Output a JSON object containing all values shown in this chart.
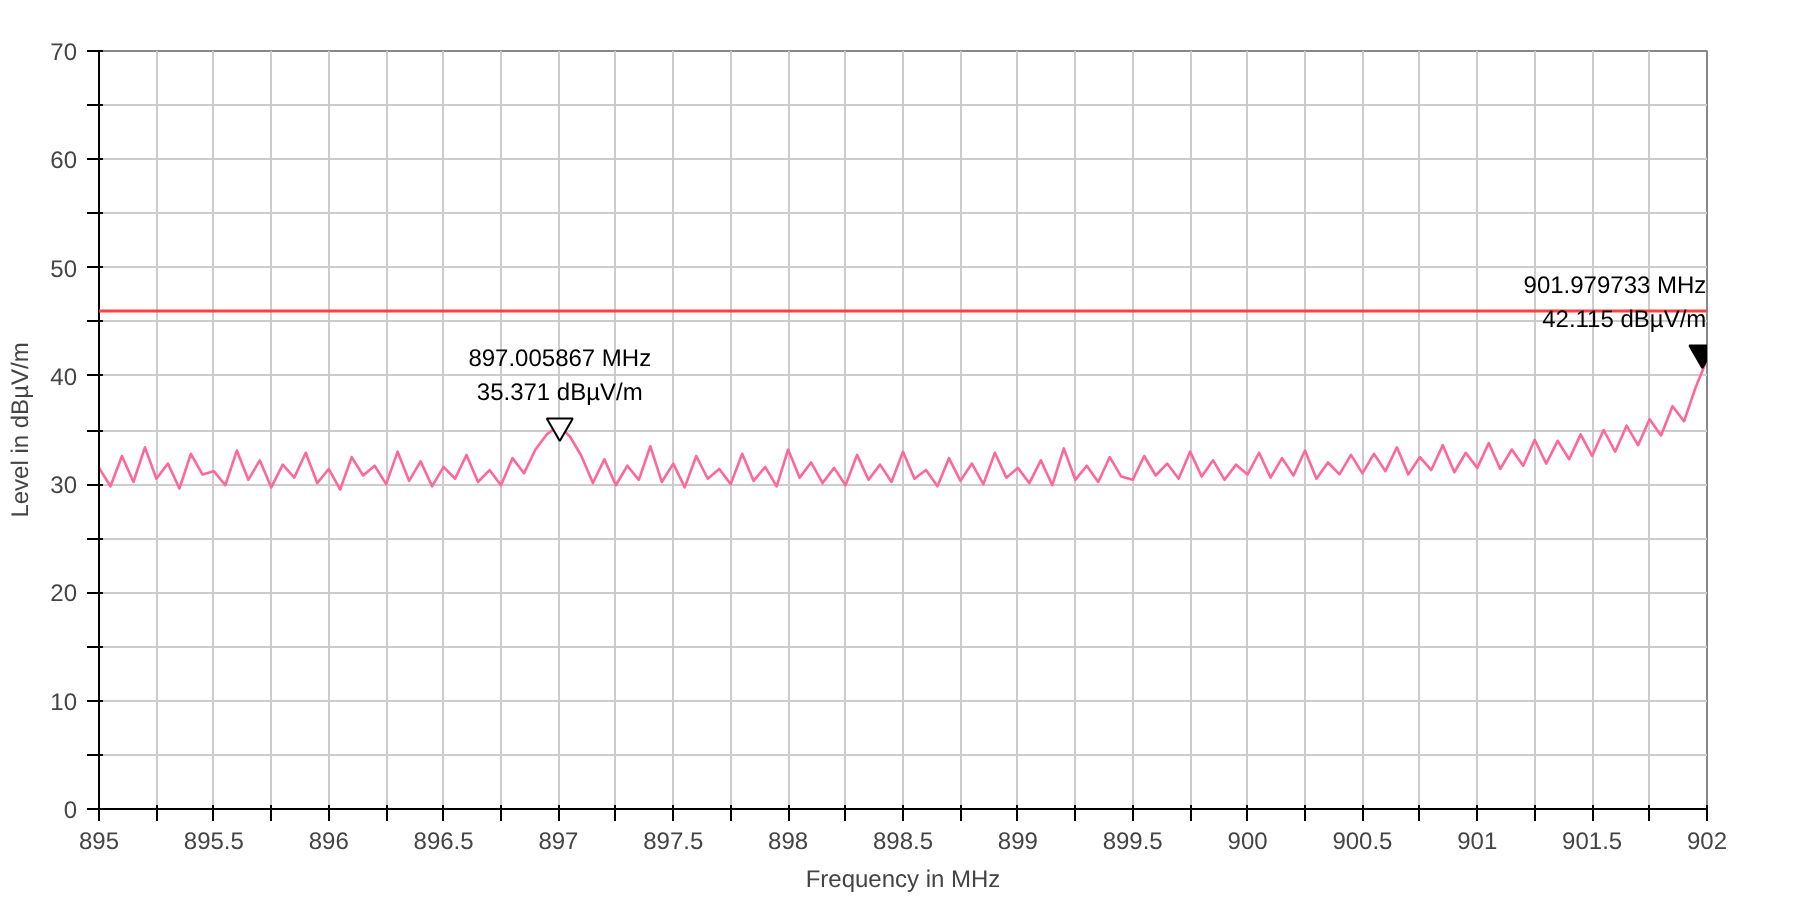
{
  "chart_data": {
    "type": "line",
    "xlabel": "Frequency in MHz",
    "ylabel": "Level in dBµV/m",
    "x": [
      895.0,
      895.05,
      895.1,
      895.15,
      895.2,
      895.25,
      895.3,
      895.35,
      895.4,
      895.45,
      895.5,
      895.55,
      895.6,
      895.65,
      895.7,
      895.75,
      895.8,
      895.85,
      895.9,
      895.95,
      896.0,
      896.05,
      896.1,
      896.15,
      896.2,
      896.25,
      896.3,
      896.35,
      896.4,
      896.45,
      896.5,
      896.55,
      896.6,
      896.65,
      896.7,
      896.75,
      896.8,
      896.85,
      896.9,
      896.95,
      897.0,
      897.05,
      897.1,
      897.15,
      897.2,
      897.25,
      897.3,
      897.35,
      897.4,
      897.45,
      897.5,
      897.55,
      897.6,
      897.65,
      897.7,
      897.75,
      897.8,
      897.85,
      897.9,
      897.95,
      898.0,
      898.05,
      898.1,
      898.15,
      898.2,
      898.25,
      898.3,
      898.35,
      898.4,
      898.45,
      898.5,
      898.55,
      898.6,
      898.65,
      898.7,
      898.75,
      898.8,
      898.85,
      898.9,
      898.95,
      899.0,
      899.05,
      899.1,
      899.15,
      899.2,
      899.25,
      899.3,
      899.35,
      899.4,
      899.45,
      899.5,
      899.55,
      899.6,
      899.65,
      899.7,
      899.75,
      899.8,
      899.85,
      899.9,
      899.95,
      900.0,
      900.05,
      900.1,
      900.15,
      900.2,
      900.25,
      900.3,
      900.35,
      900.4,
      900.45,
      900.5,
      900.55,
      900.6,
      900.65,
      900.7,
      900.75,
      900.8,
      900.85,
      900.9,
      900.95,
      901.0,
      901.05,
      901.1,
      901.15,
      901.2,
      901.25,
      901.3,
      901.35,
      901.4,
      901.45,
      901.5,
      901.55,
      901.6,
      901.65,
      901.7,
      901.75,
      901.8,
      901.85,
      901.9,
      901.95,
      902.0
    ],
    "series": [
      {
        "color": "#ff6699",
        "values": [
          31.5,
          29.8,
          32.6,
          30.2,
          33.4,
          30.5,
          31.9,
          29.6,
          32.8,
          30.9,
          31.2,
          29.9,
          33.1,
          30.4,
          32.2,
          29.7,
          31.8,
          30.6,
          32.9,
          30.1,
          31.4,
          29.5,
          32.5,
          30.8,
          31.7,
          30.0,
          33.0,
          30.3,
          32.1,
          29.8,
          31.6,
          30.5,
          32.7,
          30.2,
          31.3,
          29.9,
          32.4,
          31.0,
          33.2,
          34.6,
          35.4,
          34.4,
          32.6,
          30.1,
          32.3,
          29.9,
          31.7,
          30.4,
          33.5,
          30.2,
          31.9,
          29.7,
          32.6,
          30.5,
          31.4,
          30.0,
          32.8,
          30.3,
          31.6,
          29.8,
          33.2,
          30.6,
          32.0,
          30.1,
          31.5,
          29.9,
          32.7,
          30.4,
          31.8,
          30.2,
          33.0,
          30.5,
          31.3,
          29.8,
          32.4,
          30.3,
          31.9,
          30.0,
          32.9,
          30.6,
          31.5,
          30.1,
          32.2,
          29.9,
          33.3,
          30.4,
          31.7,
          30.2,
          32.5,
          30.7,
          30.4,
          32.6,
          30.8,
          31.9,
          30.5,
          33.0,
          30.7,
          32.2,
          30.4,
          31.8,
          30.9,
          32.9,
          30.6,
          32.4,
          30.8,
          33.1,
          30.5,
          32.0,
          30.9,
          32.7,
          31.0,
          32.8,
          31.2,
          33.4,
          30.9,
          32.5,
          31.3,
          33.6,
          31.1,
          32.9,
          31.5,
          33.8,
          31.4,
          33.2,
          31.7,
          34.1,
          31.9,
          34.0,
          32.3,
          34.6,
          32.6,
          35.0,
          33.0,
          35.4,
          33.6,
          36.0,
          34.5,
          37.2,
          35.8,
          38.9,
          41.5
        ]
      }
    ],
    "xlim": [
      895,
      902
    ],
    "ylim": [
      0,
      70
    ],
    "xticks": [
      895,
      {
        "value": 895.25,
        "label": null
      },
      895.5,
      {
        "value": 895.75,
        "label": null
      },
      896,
      {
        "value": 896.25,
        "label": null
      },
      896.5,
      {
        "value": 896.75,
        "label": null
      },
      897,
      {
        "value": 897.25,
        "label": null
      },
      897.5,
      {
        "value": 897.75,
        "label": null
      },
      898,
      {
        "value": 898.25,
        "label": null
      },
      898.5,
      {
        "value": 898.75,
        "label": null
      },
      899,
      {
        "value": 899.25,
        "label": null
      },
      899.5,
      {
        "value": 899.75,
        "label": null
      },
      900,
      {
        "value": 900.25,
        "label": null
      },
      900.5,
      {
        "value": 900.75,
        "label": null
      },
      901,
      {
        "value": 901.25,
        "label": null
      },
      901.5,
      {
        "value": 901.75,
        "label": null
      },
      902
    ],
    "yticks": [
      0,
      {
        "value": 5,
        "label": null
      },
      10,
      {
        "value": 15,
        "label": null
      },
      20,
      {
        "value": 25,
        "label": null
      },
      30,
      {
        "value": 35,
        "label": null
      },
      40,
      {
        "value": 45,
        "label": null
      },
      50,
      {
        "value": 55,
        "label": null
      },
      60,
      {
        "value": 65,
        "label": null
      },
      70
    ],
    "ref_lines": [
      {
        "axis": "y",
        "value": 46,
        "color": "#ff4040"
      }
    ],
    "annotations": [
      {
        "text": "897.005867 MHz\n35.371 dBµV/m",
        "x": 897.005867,
        "y": 35.371
      },
      {
        "text": "901.979733 MHz\n42.115 dBµV/m",
        "x": 901.979733,
        "y": 42.115
      }
    ],
    "grid": true,
    "marker": "none",
    "line_style": "solid"
  }
}
